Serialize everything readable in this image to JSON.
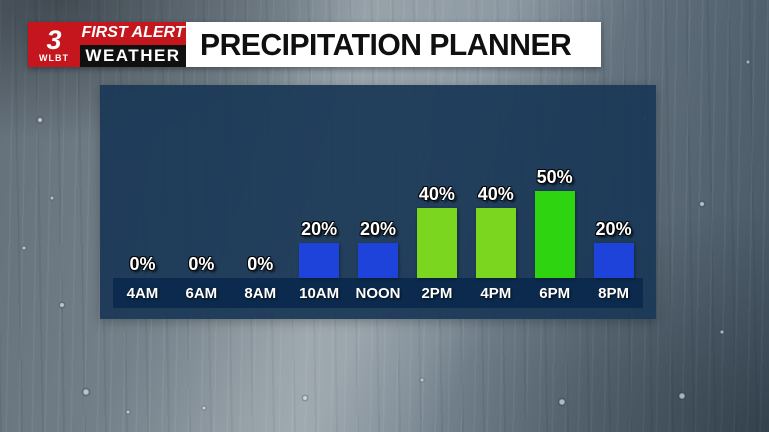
{
  "branding": {
    "station_number": "3",
    "station_call": "WLBT",
    "first_alert": "FIRST ALERT",
    "weather": "WEATHER",
    "brand_red": "#c4161c",
    "brand_black": "#101010"
  },
  "header": {
    "title": "PRECIPITATION PLANNER"
  },
  "chart_data": {
    "type": "bar",
    "title": "PRECIPITATION PLANNER",
    "categories": [
      "4AM",
      "6AM",
      "8AM",
      "10AM",
      "NOON",
      "2PM",
      "4PM",
      "6PM",
      "8PM"
    ],
    "values": [
      0,
      0,
      0,
      20,
      20,
      40,
      40,
      50,
      20
    ],
    "value_labels": [
      "0%",
      "0%",
      "0%",
      "20%",
      "20%",
      "40%",
      "40%",
      "50%",
      "20%"
    ],
    "unit": "%",
    "ylim": [
      0,
      60
    ],
    "grid": "off",
    "legend": "none",
    "bar_colors": [
      null,
      null,
      null,
      "#1e43da",
      "#1e43da",
      "#7ad61e",
      "#7ad61e",
      "#2fd411",
      "#1e43da"
    ],
    "panel_bg": "rgba(27,56,87,0.94)",
    "axis_strip_bg": "#0b2a4d",
    "label_color": "#ffffff"
  }
}
